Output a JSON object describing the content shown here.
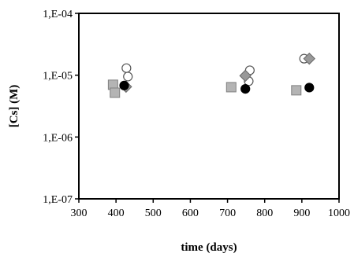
{
  "chart_data": {
    "type": "scatter",
    "title": "",
    "xlabel": "time (days)",
    "ylabel": "[Cs] (M)",
    "xlim": [
      300,
      1000
    ],
    "ylim": [
      1e-07,
      0.0001
    ],
    "yscale": "log",
    "grid": false,
    "legend": "none",
    "x_ticks": [
      300,
      400,
      500,
      600,
      700,
      800,
      900,
      1000
    ],
    "y_ticks": [
      {
        "value": 0.0001,
        "label": "1,E-04"
      },
      {
        "value": 1e-05,
        "label": "1,E-05"
      },
      {
        "value": 1e-06,
        "label": "1,E-06"
      },
      {
        "value": 1e-07,
        "label": "1,E-07"
      }
    ],
    "series": [
      {
        "marker": "square",
        "fill": "#b4b4b4",
        "stroke": "#808080",
        "points": [
          [
            392,
            7e-06
          ],
          [
            397,
            5.2e-06
          ],
          [
            710,
            6.4e-06
          ],
          [
            885,
            5.7e-06
          ]
        ]
      },
      {
        "marker": "circle",
        "fill": "#ffffff",
        "stroke": "#555555",
        "points": [
          [
            428,
            1.3e-05
          ],
          [
            432,
            9.5e-06
          ],
          [
            760,
            1.2e-05
          ],
          [
            757,
            8e-06
          ],
          [
            906,
            1.85e-05
          ]
        ]
      },
      {
        "marker": "diamond",
        "fill": "#999999",
        "stroke": "#666666",
        "points": [
          [
            427,
            6.5e-06
          ],
          [
            748,
            9.8e-06
          ],
          [
            920,
            1.85e-05
          ]
        ]
      },
      {
        "marker": "circle",
        "fill": "#000000",
        "stroke": "#000000",
        "points": [
          [
            422,
            6.8e-06
          ],
          [
            748,
            6e-06
          ],
          [
            920,
            6.3e-06
          ]
        ]
      }
    ]
  }
}
